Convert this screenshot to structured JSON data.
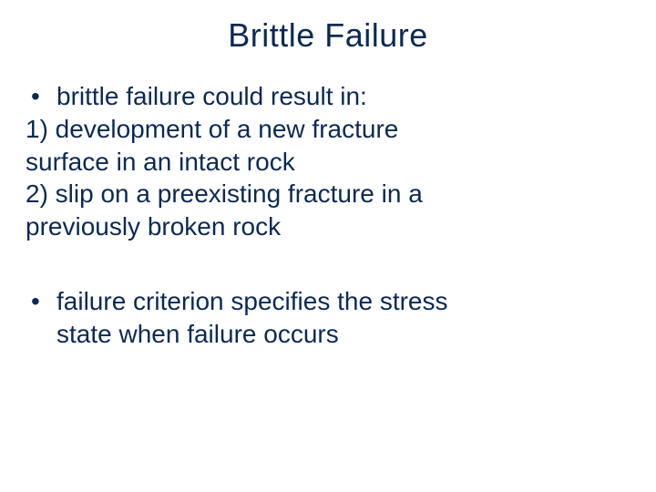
{
  "colors": {
    "title_color": "#0a2a55",
    "body_color": "#0a2a55",
    "background": "#ffffff"
  },
  "typography": {
    "title_fontsize": 36,
    "body_fontsize": 28,
    "font_family": "Arial"
  },
  "title": "Brittle Failure",
  "bullets": [
    {
      "lead": "brittle failure could result in:",
      "sublines": [
        "1) development of a new fracture",
        "surface in an intact rock",
        "2) slip on a preexisting fracture in a",
        "previously broken rock"
      ],
      "indented": false
    },
    {
      "lead": "failure criterion specifies the stress",
      "sublines": [
        "state when failure occurs"
      ],
      "indented": true
    }
  ]
}
